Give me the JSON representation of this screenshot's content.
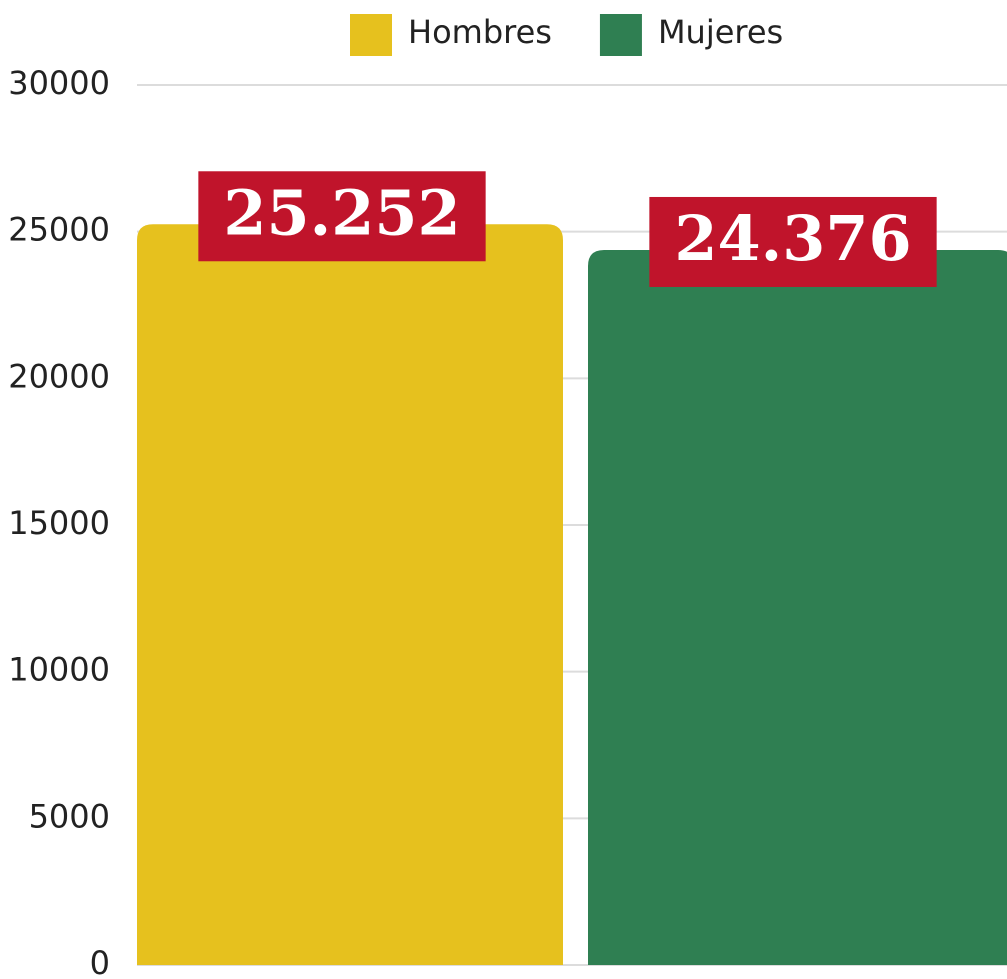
{
  "chart_data": {
    "type": "bar",
    "series": [
      {
        "name": "Hombres",
        "color": "#e6c11e",
        "values": [
          25252
        ],
        "value_labels": [
          "25.252"
        ]
      },
      {
        "name": "Mujeres",
        "color": "#2f7f52",
        "values": [
          24376
        ],
        "value_labels": [
          "24.376"
        ]
      }
    ],
    "ylim": [
      0,
      30000
    ],
    "yticks": [
      0,
      5000,
      10000,
      15000,
      20000,
      25000,
      30000
    ],
    "grid": true,
    "legend": "top",
    "label_color": "#c0142b"
  }
}
